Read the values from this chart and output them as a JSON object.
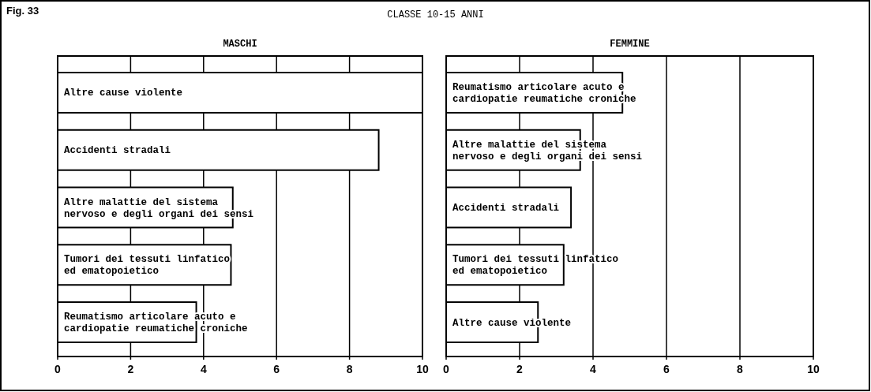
{
  "chart_data": [
    {
      "type": "bar",
      "orientation": "horizontal",
      "title": "MASCHI",
      "subtitle": "CLASSE 10-15 ANNI",
      "annotations": [
        "Fig. 33"
      ],
      "categories": [
        "Altre cause violente",
        "Accidenti stradali",
        "Altre malattie del sistema nervoso e degli organi dei sensi",
        "Tumori dei tessuti linfatico ed ematopoietico",
        "Reumatismo articolare acuto e cardiopatie reumatiche croniche"
      ],
      "values": [
        10,
        8.8,
        4.8,
        4.75,
        3.8
      ],
      "color": "#ffffff",
      "xlim": [
        0,
        10
      ],
      "xticks": [
        0,
        2,
        4,
        6,
        8,
        10
      ],
      "grid": "x"
    },
    {
      "type": "bar",
      "orientation": "horizontal",
      "title": "FEMMINE",
      "categories": [
        "Reumatismo articolare acuto e cardiopatie reumatiche croniche",
        "Altre malattie del sistema nervoso e degli organi dei sensi",
        "Accidenti stradali",
        "Tumori dei tessuti linfatico ed ematopoietico",
        "Altre cause violente"
      ],
      "values": [
        4.8,
        3.65,
        3.4,
        3.2,
        2.5
      ],
      "color": "#ffffff",
      "xlim": [
        0,
        10
      ],
      "xticks": [
        0,
        2,
        4,
        6,
        8,
        10
      ],
      "grid": "x"
    }
  ]
}
